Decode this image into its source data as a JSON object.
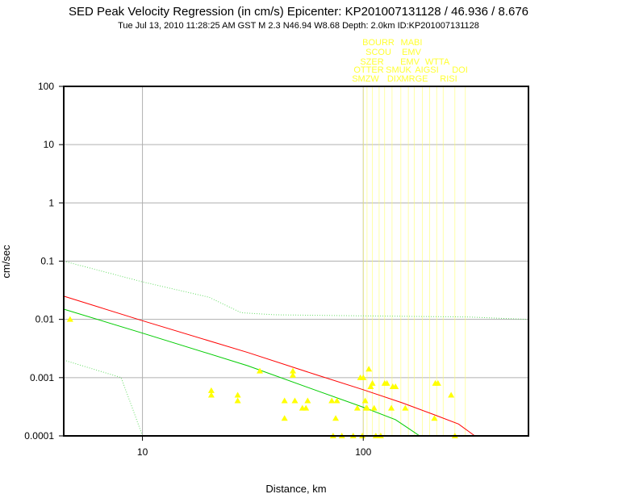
{
  "chart_data": {
    "type": "scatter",
    "title": "SED Peak Velocity Regression (in cm/s) Epicenter: KP201007131128 / 46.936 / 8.676",
    "subtitle": "Tue Jul 13, 2010 11:28:25 AM GST   M 2.3    N46.94 W8.68   Depth: 2.0km   ID:KP201007131128",
    "xlabel": "Distance, km",
    "ylabel": "cm/sec",
    "x_scale": "log",
    "y_scale": "log",
    "xlim": [
      4.4,
      560
    ],
    "ylim": [
      0.0001,
      100
    ],
    "x_ticks": [
      "10",
      "100"
    ],
    "x_tick_values": [
      10,
      100
    ],
    "y_ticks": [
      "0.0001",
      "0.001",
      "0.01",
      "0.1",
      "1",
      "10",
      "100"
    ],
    "y_tick_values": [
      0.0001,
      0.001,
      0.01,
      0.1,
      1,
      10,
      100
    ],
    "grid": true,
    "colors": {
      "points": "#ffff00",
      "station_labels": "#ffff33",
      "regression": "#ff0000",
      "fit": "#00cc00",
      "bounds": "#66dd66",
      "grid": "#b0b0b0",
      "marker_lines": "#ffff66"
    },
    "station_labels": [
      [
        "BOURR",
        "MABI"
      ],
      [
        "SCOU",
        "EMV"
      ],
      [
        "SZER",
        "EMV",
        "WTTA"
      ],
      [
        "OTTER",
        "SMUK",
        "AIGSI",
        "DOI"
      ],
      [
        "SMZW",
        "DIX",
        "MRGE",
        "RISI"
      ]
    ],
    "marker_distances": [
      100,
      104,
      110,
      118,
      125,
      135,
      148,
      160,
      170,
      185,
      200,
      215,
      230,
      260,
      290
    ],
    "series": [
      {
        "kind": "observations",
        "points": [
          [
            4.7,
            0.01
          ],
          [
            20.5,
            0.0006
          ],
          [
            20.5,
            0.0005
          ],
          [
            27,
            0.0005
          ],
          [
            27,
            0.0004
          ],
          [
            34,
            0.0013
          ],
          [
            44,
            0.0004
          ],
          [
            44,
            0.0002
          ],
          [
            48,
            0.0013
          ],
          [
            48,
            0.0011
          ],
          [
            49,
            0.0004
          ],
          [
            53,
            0.0003
          ],
          [
            55,
            0.0003
          ],
          [
            56,
            0.0004
          ],
          [
            72,
            0.0004
          ],
          [
            75,
            0.0002
          ],
          [
            76,
            0.0004
          ],
          [
            73,
            0.0001
          ],
          [
            80,
            0.0001
          ],
          [
            90,
            0.0001
          ],
          [
            94,
            0.0003
          ],
          [
            97,
            0.001
          ],
          [
            100,
            0.001
          ],
          [
            99,
            0.0001
          ],
          [
            102,
            0.0004
          ],
          [
            103,
            0.0003
          ],
          [
            104,
            0.0003
          ],
          [
            106,
            0.0014
          ],
          [
            108,
            0.0007
          ],
          [
            110,
            0.0008
          ],
          [
            112,
            0.0003
          ],
          [
            114,
            0.0001
          ],
          [
            120,
            0.0001
          ],
          [
            125,
            0.0008
          ],
          [
            128,
            0.0008
          ],
          [
            134,
            0.0003
          ],
          [
            136,
            0.0007
          ],
          [
            140,
            0.0007
          ],
          [
            155,
            0.0003
          ],
          [
            210,
            0.0002
          ],
          [
            212,
            0.0008
          ],
          [
            218,
            0.0008
          ],
          [
            250,
            0.0005
          ],
          [
            260,
            0.0001
          ]
        ]
      },
      {
        "kind": "regression",
        "points": [
          [
            4.4,
            0.025
          ],
          [
            10,
            0.0095
          ],
          [
            30,
            0.0027
          ],
          [
            60,
            0.00115
          ],
          [
            100,
            0.00062
          ],
          [
            150,
            0.00037
          ],
          [
            210,
            0.00023
          ],
          [
            270,
            0.00016
          ],
          [
            320,
            0.0001
          ]
        ]
      },
      {
        "kind": "fit",
        "points": [
          [
            4.4,
            0.015
          ],
          [
            10,
            0.0058
          ],
          [
            30,
            0.0016
          ],
          [
            60,
            0.00062
          ],
          [
            100,
            0.00031
          ],
          [
            140,
            0.00019
          ],
          [
            180,
            0.0001
          ]
        ]
      },
      {
        "kind": "upper-bound",
        "points": [
          [
            4.4,
            0.1
          ],
          [
            10,
            0.044
          ],
          [
            20,
            0.024
          ],
          [
            28,
            0.013
          ],
          [
            40,
            0.012
          ],
          [
            100,
            0.0115
          ],
          [
            300,
            0.011
          ],
          [
            560,
            0.01
          ]
        ]
      },
      {
        "kind": "lower-bound",
        "points": [
          [
            4.4,
            0.002
          ],
          [
            8,
            0.001
          ],
          [
            9,
            0.0003
          ],
          [
            10,
            0.0001
          ]
        ]
      }
    ]
  }
}
